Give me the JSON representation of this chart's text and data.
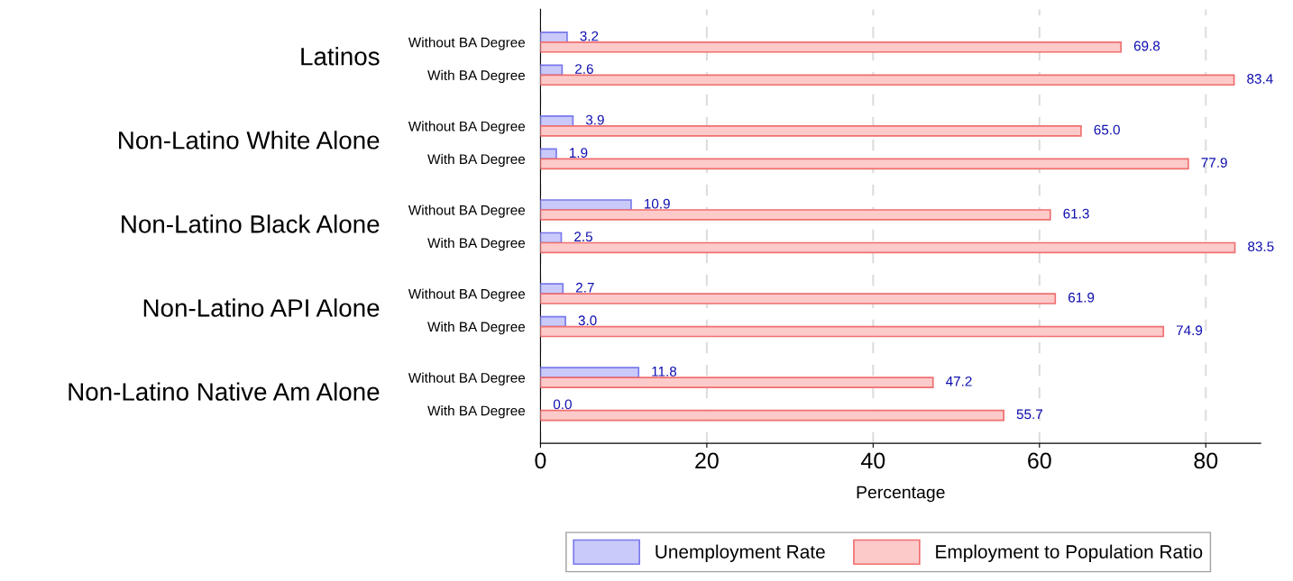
{
  "chart_data": {
    "type": "bar",
    "orientation": "horizontal",
    "xlabel": "Percentage",
    "categories": [
      "Without BA Degree",
      "With BA Degree",
      "Without BA Degree",
      "With BA Degree",
      "Without BA Degree",
      "With BA Degree",
      "Without BA Degree",
      "With BA Degree",
      "Without BA Degree",
      "With BA Degree"
    ],
    "annotations": [
      "Latinos",
      "Non-Latino White Alone",
      "Non-Latino Black Alone",
      "Non-Latino API Alone",
      "Non-Latino Native Am Alone"
    ],
    "series": [
      {
        "name": "Unemployment Rate",
        "color": "#cacafa",
        "values": [
          3.2,
          2.6,
          3.9,
          1.9,
          10.9,
          2.5,
          2.7,
          3.0,
          11.8,
          0.0
        ],
        "value_labels": [
          "3.2",
          "2.6",
          "3.9",
          "1.9",
          "10.9",
          "2.5",
          "2.7",
          "3.0",
          "11.8",
          "0.0"
        ]
      },
      {
        "name": "Employment to Population Ratio",
        "color": "#fdcaca",
        "values": [
          69.8,
          83.4,
          65.0,
          77.9,
          61.3,
          83.5,
          61.9,
          74.9,
          47.2,
          55.7
        ],
        "value_labels": [
          "69.8",
          "83.4",
          "65.0",
          "77.9",
          "61.3",
          "83.5",
          "61.9",
          "74.9",
          "47.2",
          "55.7"
        ]
      }
    ],
    "xlim": [
      0,
      86.6
    ],
    "xticks": [
      0,
      20,
      40,
      60,
      80
    ],
    "grid": "x",
    "legend": "bottom"
  }
}
